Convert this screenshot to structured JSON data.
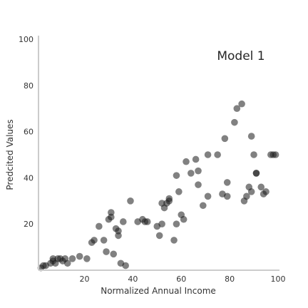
{
  "chart_data": {
    "type": "scatter",
    "title": "",
    "xlabel": "Normalized Annual Income",
    "ylabel": "Predcited Values",
    "annotation": "Model 1",
    "annotation_placement": "top-right",
    "xlim": [
      1,
      100
    ],
    "ylim": [
      0,
      100
    ],
    "xticks": [
      20,
      40,
      60,
      80,
      100
    ],
    "yticks": [
      20,
      40,
      60,
      80,
      100
    ],
    "grid": false,
    "legend": "none",
    "marker_color": "#1a1a1a",
    "marker_opacity": 0.55,
    "x": [
      2,
      3,
      4,
      6,
      7,
      7,
      8,
      9,
      10,
      11,
      12,
      13,
      15,
      18,
      21,
      23,
      24,
      26,
      28,
      29,
      30,
      31,
      31,
      32,
      33,
      34,
      34,
      35,
      36,
      37,
      39,
      42,
      44,
      45,
      46,
      50,
      51,
      52,
      52,
      53,
      54,
      55,
      55,
      57,
      58,
      58,
      59,
      60,
      61,
      62,
      64,
      66,
      67,
      67,
      69,
      71,
      71,
      75,
      77,
      78,
      79,
      79,
      82,
      83,
      85,
      86,
      87,
      88,
      89,
      89,
      90,
      91,
      91,
      93,
      94,
      95,
      97,
      98,
      99
    ],
    "y": [
      1,
      2,
      2,
      3,
      4,
      5,
      3,
      5,
      5,
      4,
      5,
      3,
      5,
      6,
      5,
      12,
      13,
      19,
      13,
      8,
      22,
      25,
      23,
      7,
      18,
      17,
      15,
      3,
      21,
      2,
      30,
      21,
      22,
      21,
      21,
      19,
      15,
      20,
      29,
      27,
      29,
      30,
      31,
      13,
      20,
      41,
      34,
      24,
      22,
      47,
      42,
      48,
      37,
      43,
      28,
      50,
      32,
      50,
      33,
      57,
      32,
      38,
      64,
      70,
      72,
      30,
      32,
      36,
      58,
      34,
      50,
      42,
      42,
      36,
      33,
      34,
      50,
      50,
      50
    ]
  }
}
